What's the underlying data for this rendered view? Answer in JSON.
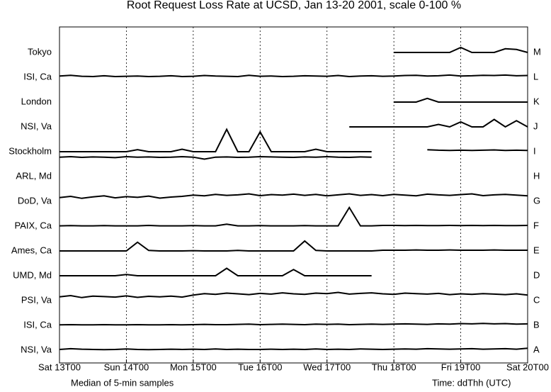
{
  "chart_data": {
    "type": "line",
    "title": "Root Request Loss Rate at UCSD, Jan 13-20 2001, scale 0-100 %",
    "note_left": "Median of 5-min samples",
    "note_right": "Time: ddThh (UTC)",
    "xlim": [
      0,
      168
    ],
    "xticks": [
      {
        "value": 0,
        "label": "Sat 13T00"
      },
      {
        "value": 24,
        "label": "Sun 14T00"
      },
      {
        "value": 48,
        "label": "Mon 15T00"
      },
      {
        "value": 72,
        "label": "Tue 16T00"
      },
      {
        "value": 96,
        "label": "Wed 17T00"
      },
      {
        "value": 120,
        "label": "Thu 18T00"
      },
      {
        "value": 144,
        "label": "Fri 19T00"
      },
      {
        "value": 168,
        "label": "Sat 20T00"
      }
    ],
    "ylim": [
      0,
      100
    ],
    "grid": true,
    "x": [
      0,
      4,
      8,
      12,
      16,
      20,
      24,
      28,
      32,
      36,
      40,
      44,
      48,
      52,
      56,
      60,
      64,
      68,
      72,
      76,
      80,
      84,
      88,
      92,
      96,
      100,
      104,
      108,
      112,
      116,
      120,
      124,
      128,
      132,
      136,
      140,
      144,
      148,
      152,
      156,
      160,
      164,
      168
    ],
    "series": [
      {
        "name": "Tokyo",
        "letter": "M",
        "color": "#000000",
        "values": [
          null,
          null,
          null,
          null,
          null,
          null,
          null,
          null,
          null,
          null,
          null,
          null,
          null,
          null,
          null,
          null,
          null,
          null,
          null,
          null,
          null,
          null,
          null,
          null,
          null,
          null,
          null,
          null,
          null,
          null,
          0,
          0,
          0,
          0,
          0,
          0,
          20,
          0,
          0,
          0,
          15,
          12,
          0
        ]
      },
      {
        "name": "ISI, Ca",
        "letter": "L",
        "color": "#000000",
        "values": [
          5,
          8,
          4,
          3,
          6,
          3,
          4,
          5,
          3,
          4,
          6,
          3,
          4,
          7,
          5,
          4,
          3,
          8,
          4,
          5,
          3,
          4,
          6,
          5,
          4,
          7,
          3,
          5,
          6,
          4,
          5,
          7,
          8,
          5,
          6,
          9,
          5,
          6,
          8,
          7,
          9,
          6,
          7
        ]
      },
      {
        "name": "London",
        "letter": "K",
        "color": "#000000",
        "values": [
          null,
          null,
          null,
          null,
          null,
          null,
          null,
          null,
          null,
          null,
          null,
          null,
          null,
          null,
          null,
          null,
          null,
          null,
          null,
          null,
          null,
          null,
          null,
          null,
          null,
          null,
          null,
          null,
          null,
          null,
          0,
          0,
          0,
          15,
          0,
          0,
          0,
          0,
          0,
          0,
          0,
          0,
          0
        ]
      },
      {
        "name": "NSI, Va",
        "letter": "J",
        "color": "#000000",
        "values": [
          null,
          null,
          null,
          null,
          null,
          null,
          null,
          null,
          null,
          null,
          null,
          null,
          null,
          null,
          null,
          null,
          null,
          null,
          null,
          null,
          null,
          null,
          null,
          null,
          null,
          null,
          0,
          0,
          0,
          0,
          0,
          0,
          0,
          0,
          10,
          0,
          20,
          0,
          0,
          30,
          0,
          25,
          0
        ]
      },
      {
        "name": "Stockholm",
        "letter": "I",
        "color": "#000000",
        "values": [
          0,
          0,
          0,
          0,
          0,
          0,
          0,
          8,
          0,
          0,
          0,
          10,
          0,
          0,
          0,
          90,
          0,
          0,
          80,
          0,
          0,
          0,
          0,
          10,
          0,
          0,
          0,
          0,
          0,
          null,
          null,
          null,
          null,
          8,
          6,
          5,
          6,
          5,
          6,
          7,
          5,
          6,
          5
        ]
      },
      {
        "name": "ARL, Md",
        "letter": "H",
        "color": "#000000",
        "values": [
          78,
          80,
          77,
          79,
          78,
          76,
          80,
          78,
          79,
          77,
          78,
          80,
          78,
          70,
          78,
          79,
          77,
          78,
          80,
          79,
          78,
          77,
          79,
          78,
          80,
          78,
          77,
          79,
          78,
          null,
          null,
          null,
          null,
          null,
          null,
          null,
          null,
          null,
          null,
          null,
          null,
          null,
          null
        ]
      },
      {
        "name": "DoD, Va",
        "letter": "G",
        "color": "#000000",
        "values": [
          15,
          20,
          12,
          18,
          22,
          14,
          19,
          16,
          21,
          13,
          17,
          20,
          25,
          22,
          28,
          24,
          26,
          30,
          23,
          27,
          25,
          29,
          24,
          28,
          22,
          26,
          30,
          24,
          27,
          23,
          28,
          25,
          22,
          29,
          26,
          24,
          27,
          30,
          23,
          26,
          28,
          25,
          22
        ]
      },
      {
        "name": "PAIX, Ca",
        "letter": "F",
        "color": "#000000",
        "values": [
          1,
          2,
          1,
          1,
          2,
          1,
          1,
          1,
          3,
          1,
          1,
          1,
          2,
          1,
          1,
          8,
          1,
          1,
          2,
          1,
          1,
          1,
          2,
          1,
          1,
          1,
          75,
          1,
          1,
          3,
          3,
          2,
          3,
          2,
          2,
          3,
          2,
          3,
          2,
          3,
          2,
          2,
          3
        ]
      },
      {
        "name": "Ames, Ca",
        "letter": "E",
        "color": "#000000",
        "values": [
          0,
          0,
          0,
          0,
          0,
          0,
          0,
          35,
          2,
          0,
          0,
          0,
          1,
          0,
          0,
          0,
          2,
          0,
          0,
          0,
          0,
          0,
          40,
          2,
          0,
          0,
          0,
          0,
          0,
          3,
          3,
          3,
          4,
          3,
          3,
          4,
          3,
          3,
          3,
          4,
          3,
          3,
          3
        ]
      },
      {
        "name": "UMD, Md",
        "letter": "D",
        "color": "#000000",
        "values": [
          0,
          0,
          0,
          0,
          0,
          0,
          5,
          0,
          0,
          0,
          0,
          0,
          0,
          0,
          0,
          30,
          0,
          0,
          0,
          0,
          0,
          25,
          0,
          0,
          0,
          0,
          0,
          0,
          0,
          null,
          null,
          null,
          null,
          null,
          null,
          null,
          null,
          null,
          null,
          null,
          null,
          null,
          null
        ]
      },
      {
        "name": "PSI, Va",
        "letter": "C",
        "color": "#000000",
        "values": [
          15,
          20,
          12,
          18,
          16,
          14,
          19,
          13,
          17,
          15,
          18,
          14,
          22,
          28,
          25,
          30,
          27,
          24,
          29,
          26,
          31,
          27,
          25,
          30,
          28,
          33,
          26,
          29,
          31,
          27,
          25,
          30,
          28,
          26,
          29,
          24,
          27,
          25,
          28,
          26,
          24,
          27,
          22
        ]
      },
      {
        "name": "ISI, Ca",
        "letter": "B",
        "color": "#000000",
        "values": [
          2,
          3,
          2,
          2,
          3,
          2,
          2,
          3,
          2,
          2,
          3,
          2,
          3,
          4,
          3,
          3,
          4,
          5,
          3,
          4,
          5,
          4,
          3,
          5,
          4,
          5,
          3,
          4,
          5,
          4,
          5,
          6,
          5,
          4,
          6,
          5,
          7,
          6,
          8,
          6,
          7,
          5,
          6
        ]
      },
      {
        "name": "NSI, Va",
        "letter": "A",
        "color": "#000000",
        "values": [
          3,
          6,
          4,
          3,
          2,
          3,
          5,
          3,
          2,
          3,
          4,
          3,
          4,
          3,
          5,
          3,
          4,
          3,
          3,
          4,
          3,
          4,
          3,
          5,
          3,
          4,
          3,
          5,
          4,
          3,
          4,
          5,
          4,
          6,
          5,
          4,
          5,
          6,
          4,
          5,
          6,
          4,
          8
        ]
      }
    ]
  }
}
